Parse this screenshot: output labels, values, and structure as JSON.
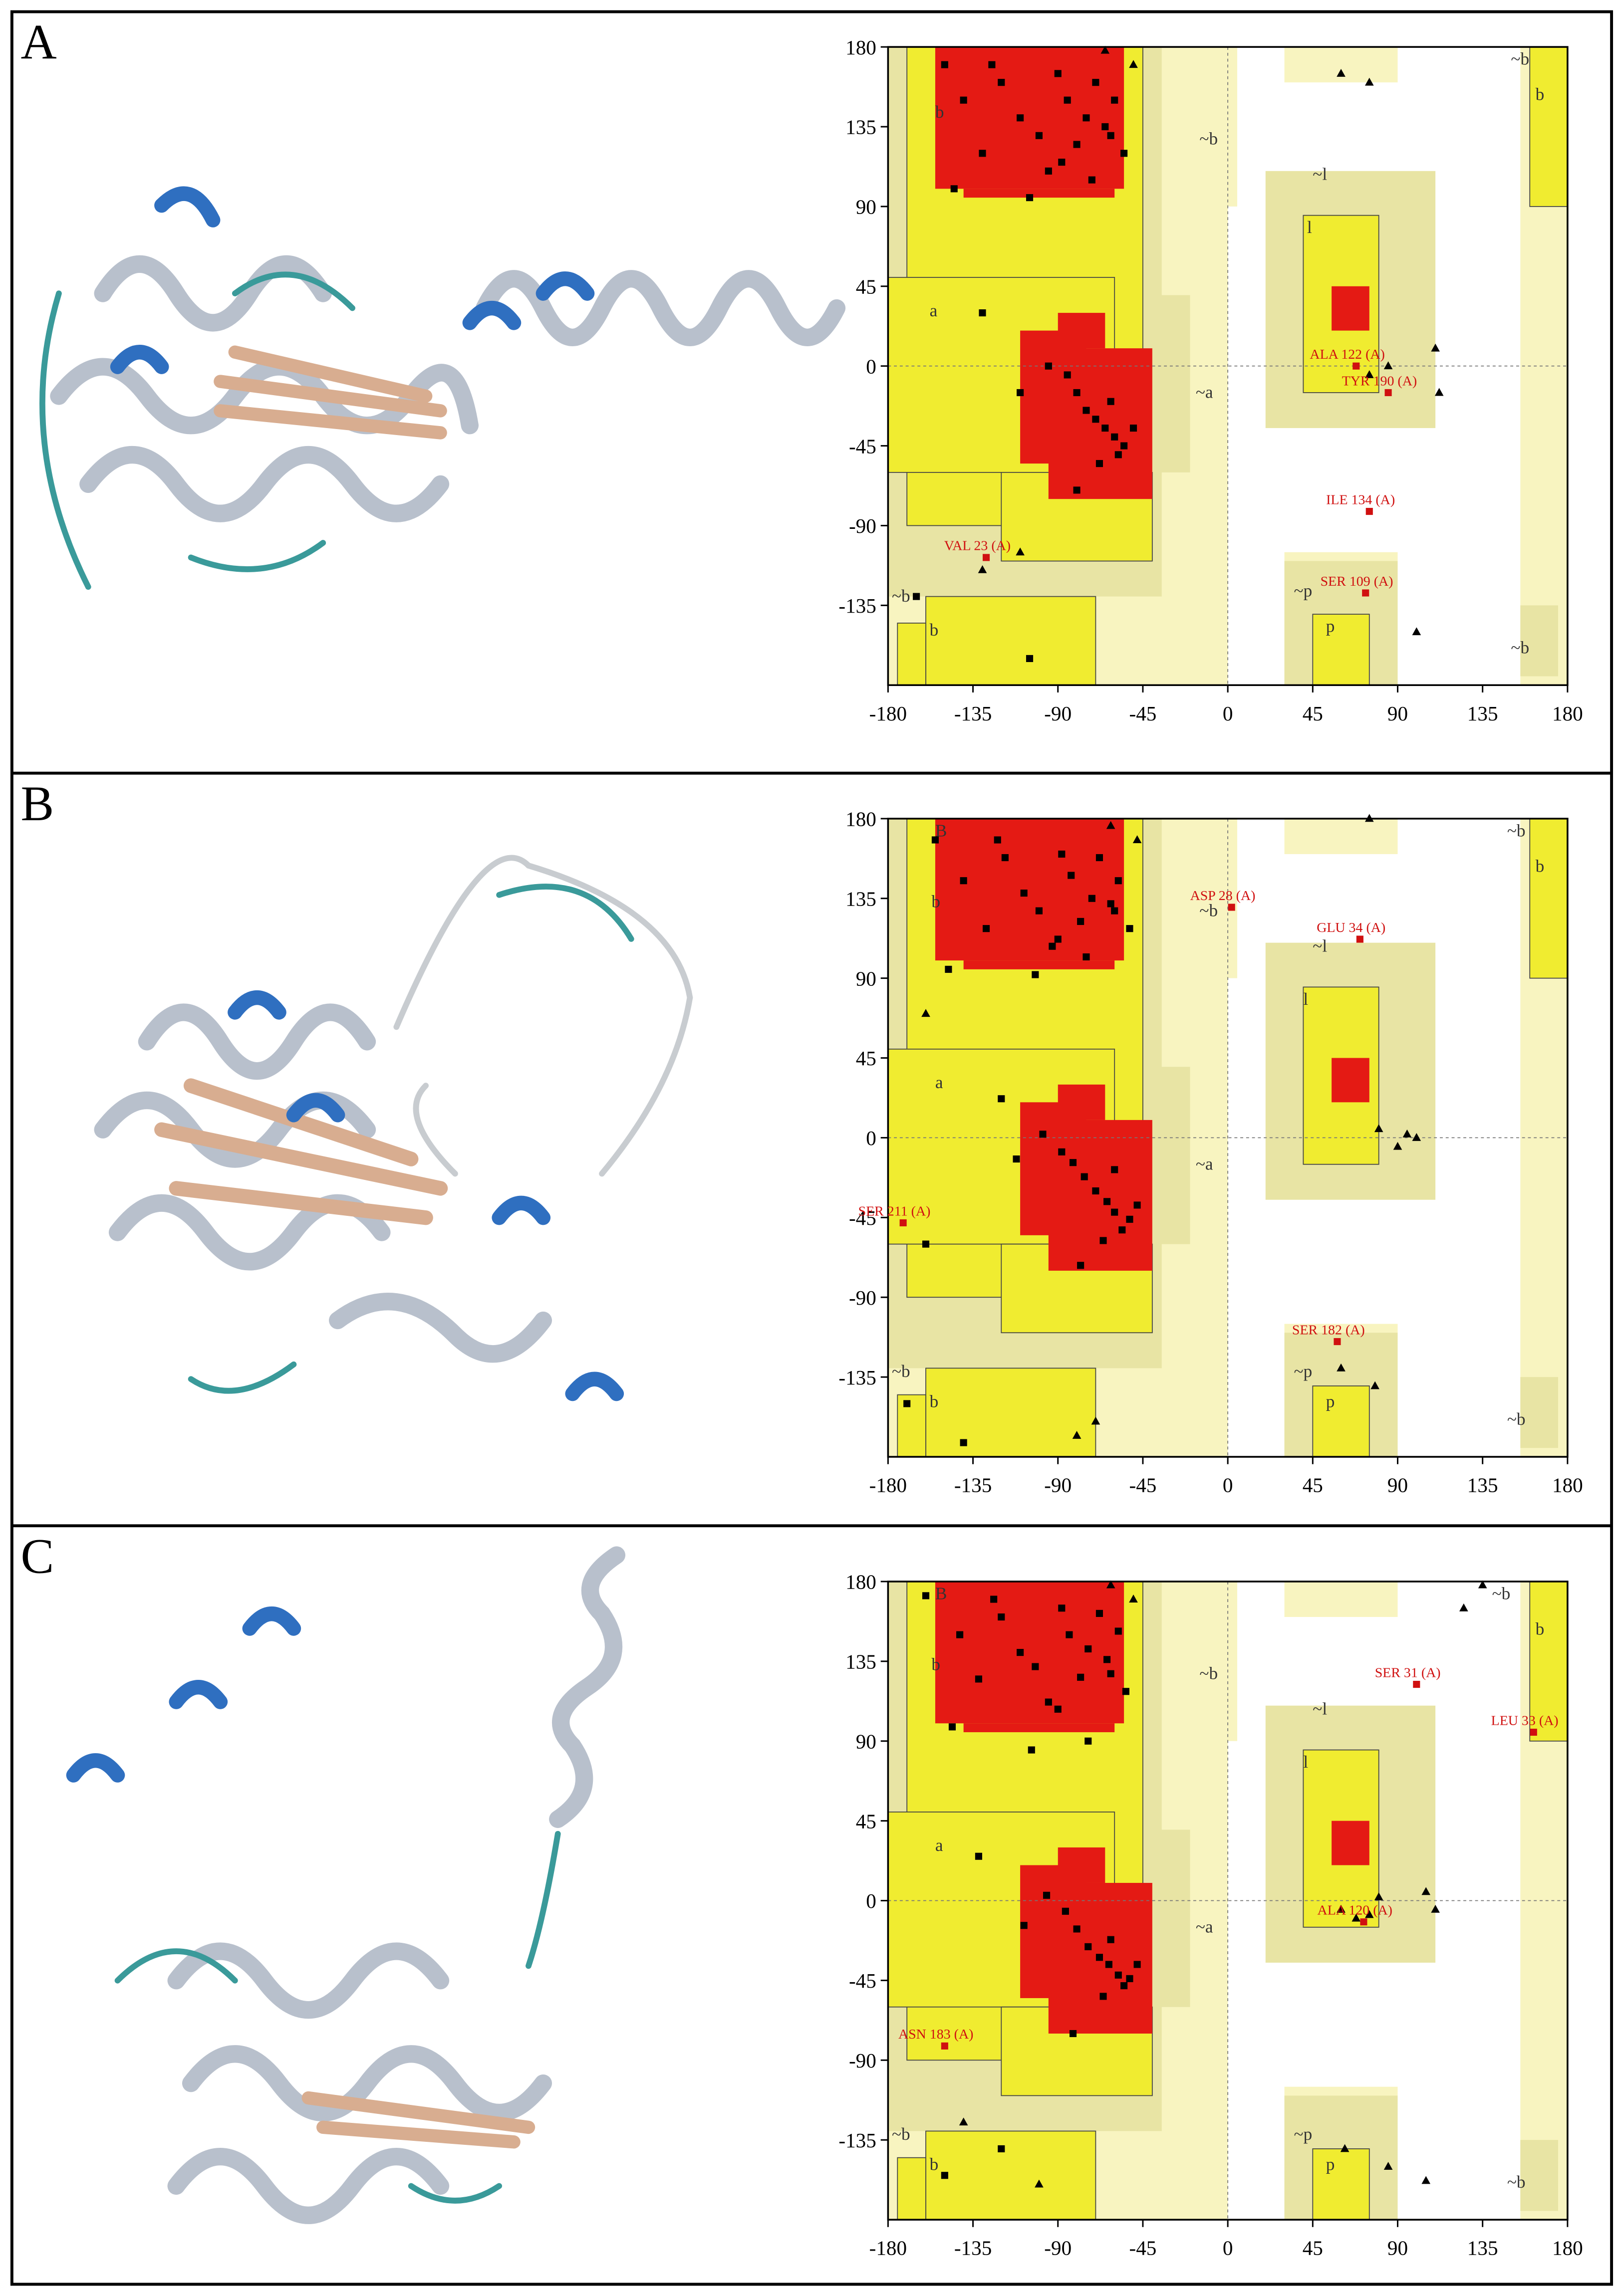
{
  "chart_data": [
    {
      "type": "scatter",
      "panel": "A",
      "xlim": [
        -180,
        180
      ],
      "ylim": [
        -180,
        180
      ],
      "xticks": [
        -180,
        -135,
        -90,
        -45,
        0,
        45,
        90,
        135,
        180
      ],
      "yticks": [
        180,
        135,
        90,
        45,
        0,
        -45,
        -90,
        -135
      ],
      "zero_lines": true,
      "region_labels": [
        {
          "text": "b",
          "x": -155,
          "y": 140
        },
        {
          "text": "a",
          "x": -158,
          "y": 28
        },
        {
          "text": "~b",
          "x": -15,
          "y": 125
        },
        {
          "text": "~a",
          "x": -17,
          "y": -18
        },
        {
          "text": "~l",
          "x": 45,
          "y": 105
        },
        {
          "text": "l",
          "x": 42,
          "y": 75
        },
        {
          "text": "~p",
          "x": 35,
          "y": -130
        },
        {
          "text": "p",
          "x": 52,
          "y": -150
        },
        {
          "text": "~b",
          "x": -178,
          "y": -133
        },
        {
          "text": "b",
          "x": -158,
          "y": -152
        },
        {
          "text": "~b",
          "x": 150,
          "y": 170
        },
        {
          "text": "b",
          "x": 163,
          "y": 150
        },
        {
          "text": "~b",
          "x": 150,
          "y": -162
        }
      ],
      "series": [
        {
          "marker": "square",
          "color": "#000000",
          "x": [
            -150,
            -140,
            -130,
            -120,
            -110,
            -100,
            -95,
            -90,
            -85,
            -80,
            -75,
            -70,
            -65,
            -60,
            -55,
            -145,
            -125,
            -105,
            -88,
            -72,
            -62,
            -95,
            -85,
            -80,
            -75,
            -70,
            -65,
            -60,
            -58,
            -55,
            -50,
            -68,
            -62,
            -110,
            -130,
            -80,
            -165,
            -105
          ],
          "y": [
            170,
            150,
            120,
            160,
            140,
            130,
            110,
            165,
            150,
            125,
            140,
            160,
            135,
            150,
            120,
            100,
            170,
            95,
            115,
            105,
            130,
            0,
            -5,
            -15,
            -25,
            -30,
            -35,
            -40,
            -50,
            -45,
            -35,
            -55,
            -20,
            -15,
            30,
            -70,
            -130,
            -165
          ]
        },
        {
          "marker": "triangle",
          "color": "#000000",
          "x": [
            -65,
            -50,
            60,
            75,
            85,
            110,
            112,
            100,
            -110,
            -130,
            75
          ],
          "y": [
            178,
            170,
            165,
            -5,
            0,
            10,
            -15,
            -150,
            -105,
            -115,
            160
          ]
        },
        {
          "marker": "square",
          "color": "#d01010",
          "x": [
            68,
            85,
            75,
            -128,
            73
          ],
          "y": [
            0,
            -15,
            -82,
            -108,
            -128
          ],
          "labels": [
            "ALA 122 (A)",
            "TYR 190 (A)",
            "ILE 134 (A)",
            "VAL 23 (A)",
            "SER 109 (A)"
          ]
        }
      ]
    },
    {
      "type": "scatter",
      "panel": "B",
      "xlim": [
        -180,
        180
      ],
      "ylim": [
        -180,
        180
      ],
      "xticks": [
        -180,
        -135,
        -90,
        -45,
        0,
        45,
        90,
        135,
        180
      ],
      "yticks": [
        180,
        135,
        90,
        45,
        0,
        -45,
        -90,
        -135
      ],
      "zero_lines": true,
      "region_labels": [
        {
          "text": "B",
          "x": -155,
          "y": 170
        },
        {
          "text": "b",
          "x": -157,
          "y": 130
        },
        {
          "text": "a",
          "x": -155,
          "y": 28
        },
        {
          "text": "~b",
          "x": -15,
          "y": 125
        },
        {
          "text": "~a",
          "x": -17,
          "y": -18
        },
        {
          "text": "~l",
          "x": 45,
          "y": 105
        },
        {
          "text": "l",
          "x": 40,
          "y": 75
        },
        {
          "text": "~p",
          "x": 35,
          "y": -135
        },
        {
          "text": "p",
          "x": 52,
          "y": -152
        },
        {
          "text": "~b",
          "x": -178,
          "y": -135
        },
        {
          "text": "b",
          "x": -158,
          "y": -152
        },
        {
          "text": "~b",
          "x": 148,
          "y": 170
        },
        {
          "text": "b",
          "x": 163,
          "y": 150
        },
        {
          "text": "~b",
          "x": 148,
          "y": -162
        }
      ],
      "series": [
        {
          "marker": "square",
          "color": "#000000",
          "x": [
            -155,
            -140,
            -128,
            -118,
            -108,
            -100,
            -93,
            -88,
            -83,
            -78,
            -72,
            -68,
            -62,
            -58,
            -52,
            -148,
            -122,
            -102,
            -90,
            -75,
            -60,
            -98,
            -88,
            -82,
            -76,
            -70,
            -64,
            -60,
            -56,
            -52,
            -48,
            -66,
            -60,
            -112,
            -120,
            -78,
            -170,
            -140,
            -160
          ],
          "y": [
            168,
            145,
            118,
            158,
            138,
            128,
            108,
            160,
            148,
            122,
            135,
            158,
            132,
            145,
            118,
            95,
            168,
            92,
            112,
            102,
            128,
            2,
            -8,
            -14,
            -22,
            -30,
            -36,
            -42,
            -52,
            -46,
            -38,
            -58,
            -18,
            -12,
            22,
            -72,
            -150,
            -172,
            -60
          ]
        },
        {
          "marker": "triangle",
          "color": "#000000",
          "x": [
            -62,
            -48,
            75,
            80,
            90,
            95,
            100,
            78,
            60,
            -80,
            -70,
            -160
          ],
          "y": [
            176,
            168,
            180,
            5,
            -5,
            2,
            0,
            -140,
            -130,
            -168,
            -160,
            70
          ]
        },
        {
          "marker": "square",
          "color": "#d01010",
          "x": [
            2,
            70,
            -172,
            58
          ],
          "y": [
            130,
            112,
            -48,
            -115
          ],
          "labels": [
            "ASP 28 (A)",
            "GLU 34 (A)",
            "SER 211 (A)",
            "SER 182 (A)"
          ]
        }
      ]
    },
    {
      "type": "scatter",
      "panel": "C",
      "xlim": [
        -180,
        180
      ],
      "ylim": [
        -180,
        180
      ],
      "xticks": [
        -180,
        -135,
        -90,
        -45,
        0,
        45,
        90,
        135,
        180
      ],
      "yticks": [
        180,
        135,
        90,
        45,
        0,
        -45,
        -90,
        -135
      ],
      "zero_lines": true,
      "region_labels": [
        {
          "text": "B",
          "x": -155,
          "y": 170
        },
        {
          "text": "b",
          "x": -157,
          "y": 130
        },
        {
          "text": "a",
          "x": -155,
          "y": 28
        },
        {
          "text": "~b",
          "x": -15,
          "y": 125
        },
        {
          "text": "~a",
          "x": -17,
          "y": -18
        },
        {
          "text": "~l",
          "x": 45,
          "y": 105
        },
        {
          "text": "l",
          "x": 40,
          "y": 75
        },
        {
          "text": "~p",
          "x": 35,
          "y": -135
        },
        {
          "text": "p",
          "x": 52,
          "y": -152
        },
        {
          "text": "~b",
          "x": -178,
          "y": -135
        },
        {
          "text": "b",
          "x": -158,
          "y": -152
        },
        {
          "text": "~b",
          "x": 140,
          "y": 170
        },
        {
          "text": "b",
          "x": 163,
          "y": 150
        },
        {
          "text": "~b",
          "x": 148,
          "y": -162
        }
      ],
      "series": [
        {
          "marker": "square",
          "color": "#000000",
          "x": [
            -160,
            -142,
            -132,
            -120,
            -110,
            -102,
            -95,
            -88,
            -84,
            -78,
            -74,
            -68,
            -64,
            -58,
            -54,
            -146,
            -124,
            -104,
            -90,
            -74,
            -62,
            -96,
            -86,
            -80,
            -74,
            -68,
            -63,
            -58,
            -55,
            -52,
            -48,
            -66,
            -62,
            -108,
            -132,
            -82,
            -120,
            -150
          ],
          "y": [
            172,
            150,
            125,
            160,
            140,
            132,
            112,
            165,
            150,
            126,
            142,
            162,
            136,
            152,
            118,
            98,
            170,
            85,
            108,
            90,
            128,
            3,
            -6,
            -16,
            -26,
            -32,
            -36,
            -42,
            -48,
            -44,
            -36,
            -54,
            -22,
            -14,
            25,
            -75,
            -140,
            -155
          ]
        },
        {
          "marker": "triangle",
          "color": "#000000",
          "x": [
            -62,
            -50,
            60,
            68,
            75,
            80,
            105,
            110,
            135,
            125,
            62,
            85,
            105,
            -140,
            -100
          ],
          "y": [
            178,
            170,
            -5,
            -10,
            -8,
            2,
            5,
            -5,
            178,
            165,
            -140,
            -150,
            -158,
            -125,
            -160
          ]
        },
        {
          "marker": "square",
          "color": "#d01010",
          "x": [
            100,
            162,
            72,
            -150
          ],
          "y": [
            122,
            95,
            -12,
            -82
          ],
          "labels": [
            "SER 31 (A)",
            "LEU 33 (A)",
            "ALA 120 (A)",
            "ASN 183 (A)"
          ]
        }
      ]
    }
  ]
}
